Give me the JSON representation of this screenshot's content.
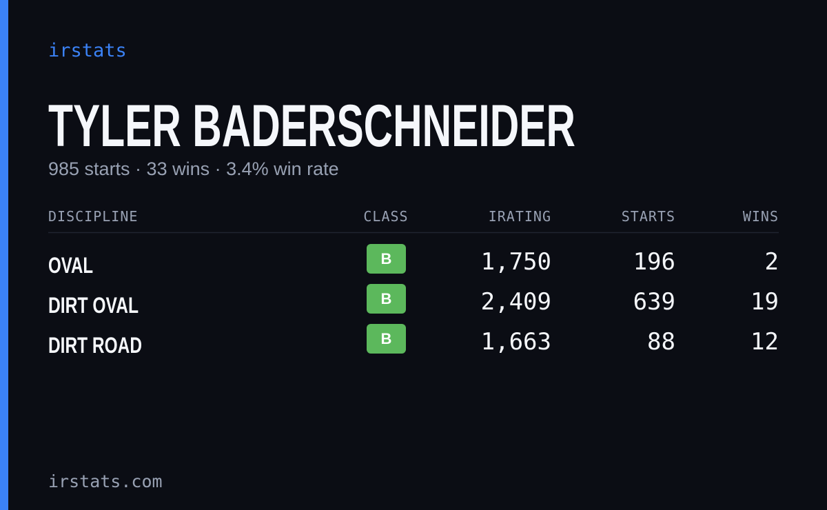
{
  "brand": "irstats",
  "title": "TYLER BADERSCHNEIDER",
  "subtitle": "985 starts · 33 wins · 3.4% win rate",
  "table": {
    "headers": [
      "DISCIPLINE",
      "CLASS",
      "IRATING",
      "STARTS",
      "WINS"
    ],
    "rows": [
      [
        "OVAL",
        "B",
        "1,750",
        "196",
        "2"
      ],
      [
        "DIRT OVAL",
        "B",
        "2,409",
        "639",
        "19"
      ],
      [
        "DIRT ROAD",
        "B",
        "1,663",
        "88",
        "12"
      ]
    ]
  },
  "footer": "irstats.com"
}
